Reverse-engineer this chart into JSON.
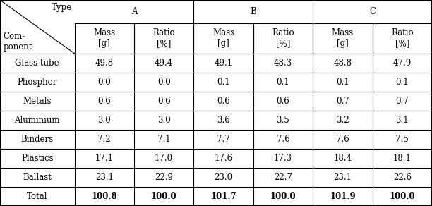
{
  "type_groups": [
    [
      "A",
      1,
      3
    ],
    [
      "B",
      3,
      5
    ],
    [
      "C",
      5,
      7
    ]
  ],
  "sub_headers": [
    "Mass\n[g]",
    "Ratio\n[%]",
    "Mass\n[g]",
    "Ratio\n[%]",
    "Mass\n[g]",
    "Ratio\n[%]"
  ],
  "components": [
    "Glass tube",
    "Phosphor",
    "Metals",
    "Aluminium",
    "Binders",
    "Plastics",
    "Ballast",
    "Total"
  ],
  "data": [
    [
      "49.8",
      "49.4",
      "49.1",
      "48.3",
      "48.8",
      "47.9"
    ],
    [
      "0.0",
      "0.0",
      "0.1",
      "0.1",
      "0.1",
      "0.1"
    ],
    [
      "0.6",
      "0.6",
      "0.6",
      "0.6",
      "0.7",
      "0.7"
    ],
    [
      "3.0",
      "3.0",
      "3.6",
      "3.5",
      "3.2",
      "3.1"
    ],
    [
      "7.2",
      "7.1",
      "7.7",
      "7.6",
      "7.6",
      "7.5"
    ],
    [
      "17.1",
      "17.0",
      "17.6",
      "17.3",
      "18.4",
      "18.1"
    ],
    [
      "23.1",
      "22.9",
      "23.0",
      "22.7",
      "23.1",
      "22.6"
    ],
    [
      "100.8",
      "100.0",
      "101.7",
      "100.0",
      "101.9",
      "100.0"
    ]
  ],
  "background_color": "#ffffff",
  "line_color": "#000000",
  "font_size": 8.5,
  "col_widths_raw": [
    1.55,
    1.24,
    1.24,
    1.24,
    1.24,
    1.24,
    1.24
  ],
  "row_heights_raw": [
    1.0,
    1.3,
    0.82,
    0.82,
    0.82,
    0.82,
    0.82,
    0.82,
    0.82,
    0.82
  ]
}
